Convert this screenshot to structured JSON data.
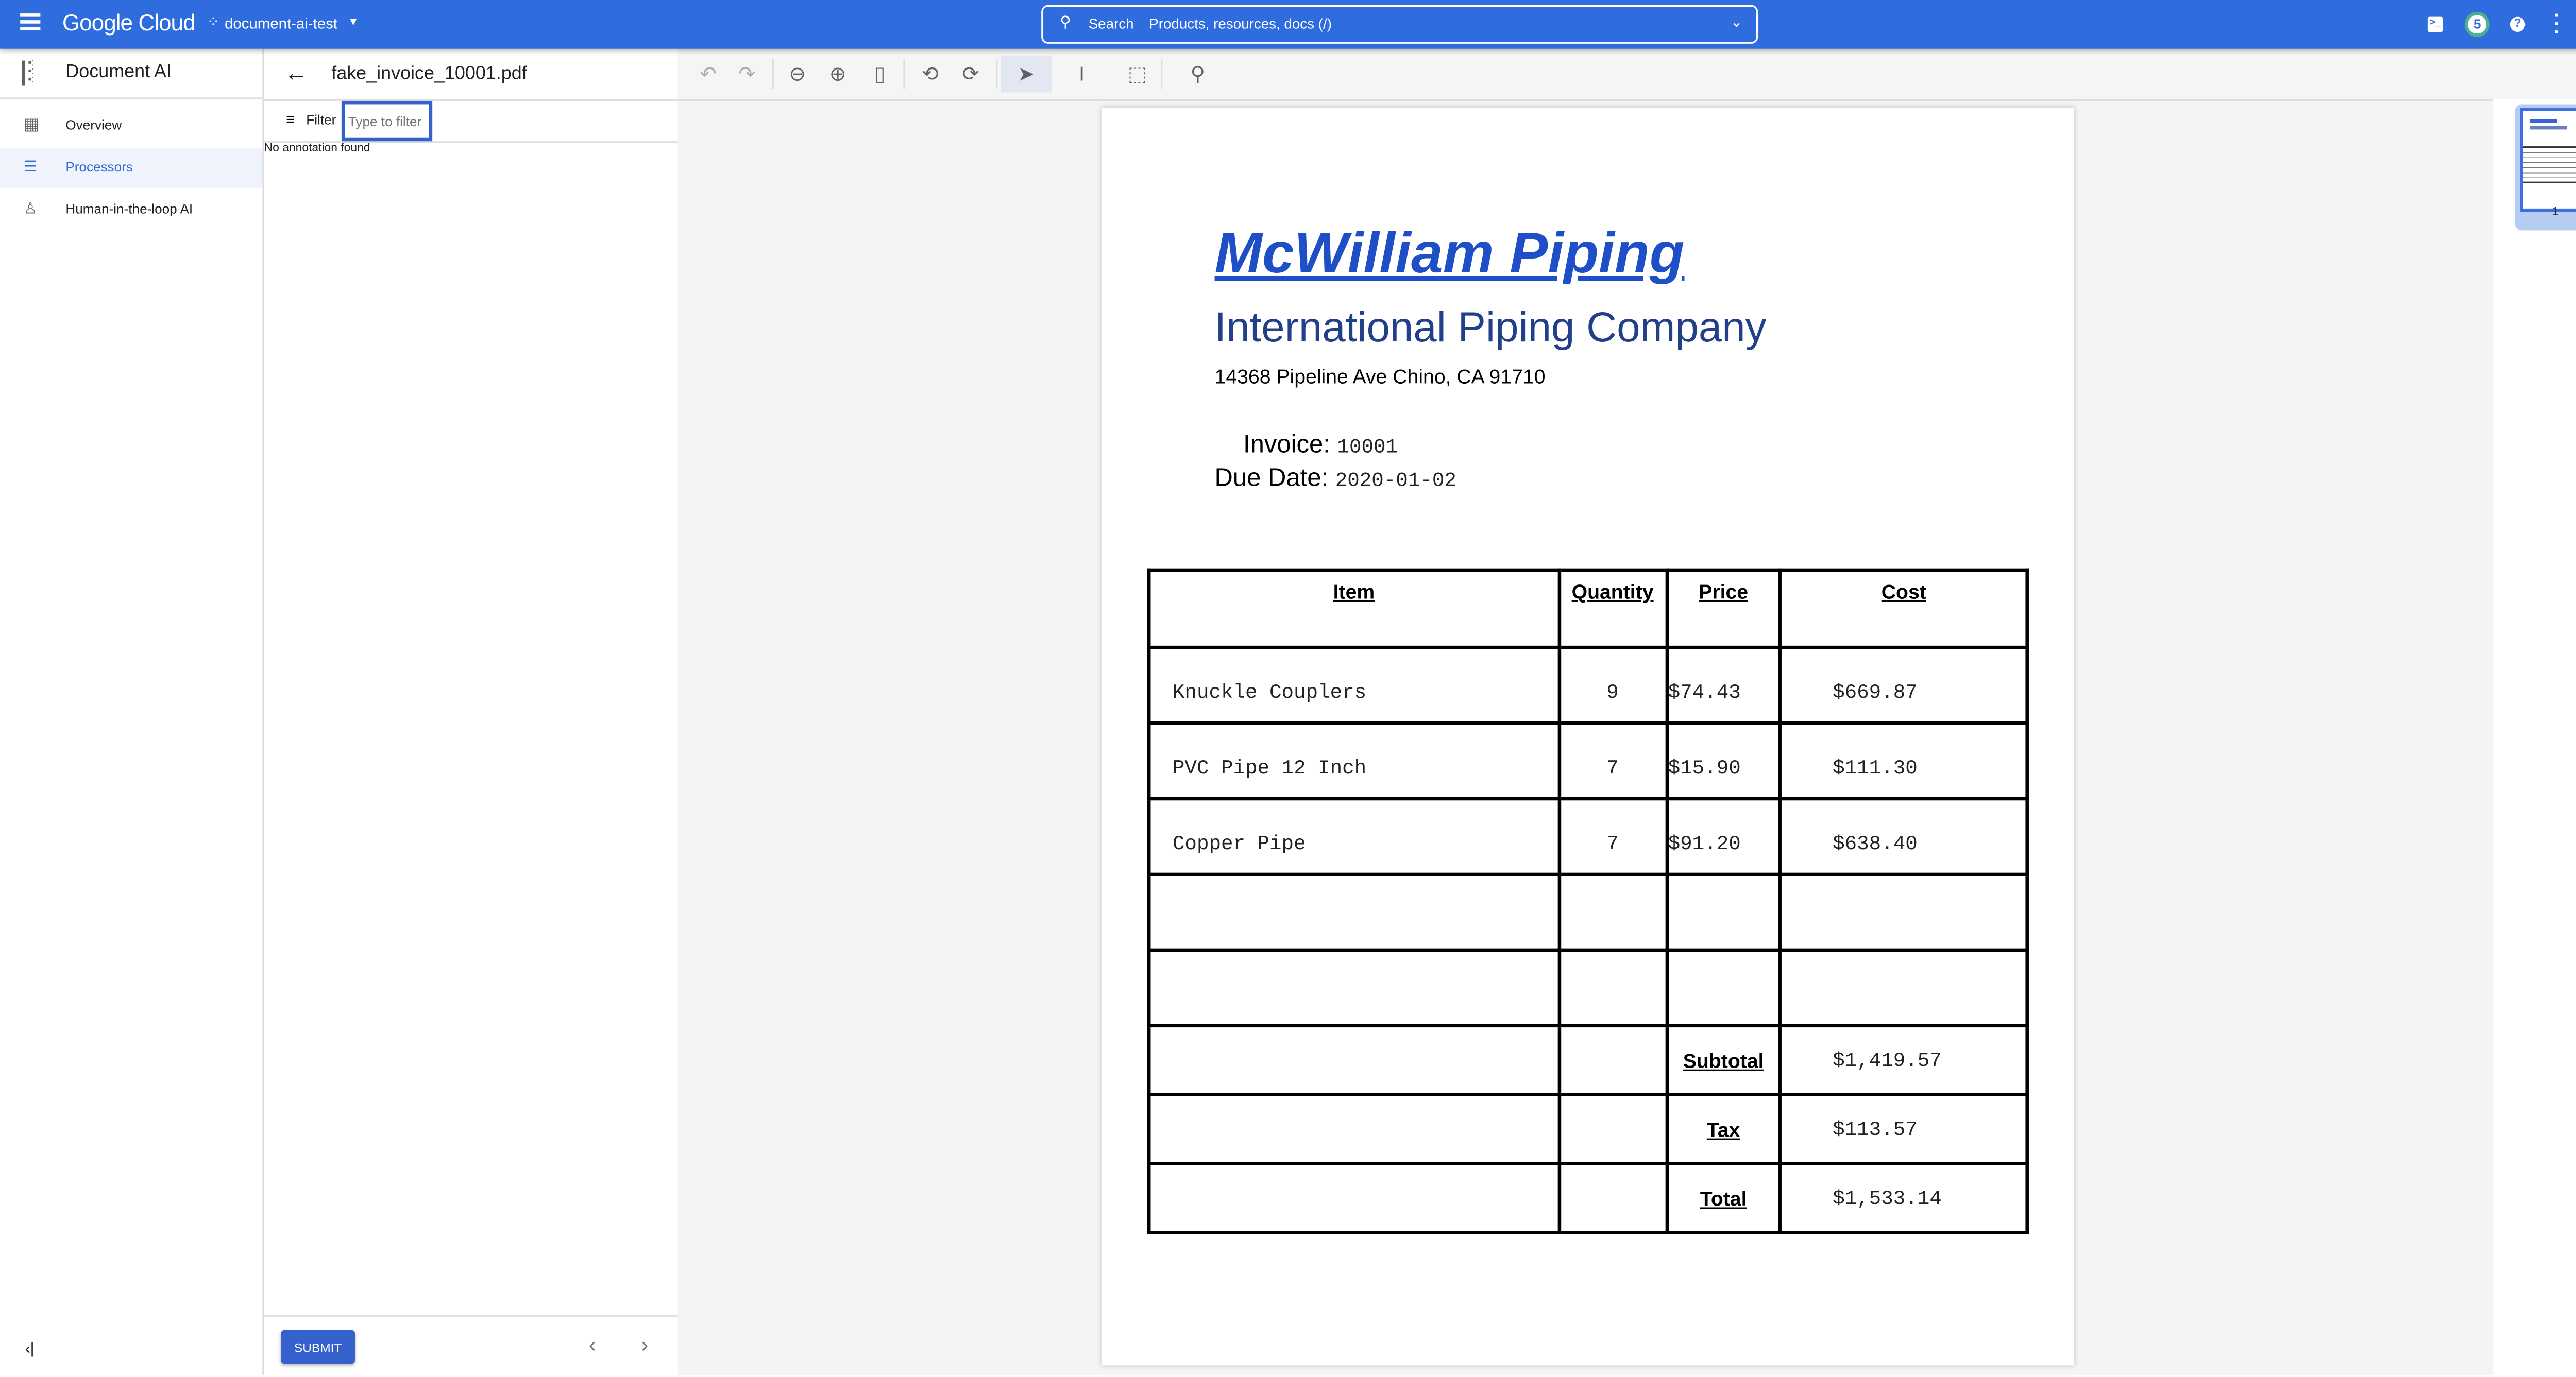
{
  "colors": {
    "brand": "#2f6ddf",
    "accent": "#3561cc",
    "company_title": "#1f4fc7",
    "company_subtitle": "#22408a",
    "badge_ring": "#4caf8f"
  },
  "topbar": {
    "menu_icon": "hamburger-icon",
    "logo": "Google Cloud",
    "project": "document-ai-test",
    "search_label": "Search",
    "search_placeholder": "Products, resources, docs (/)",
    "notifications_count": "5"
  },
  "nav": {
    "title": "Document AI",
    "items": [
      {
        "label": "Overview",
        "icon": "dashboard-icon"
      },
      {
        "label": "Processors",
        "icon": "processor-icon",
        "active": true
      },
      {
        "label": "Human-in-the-loop AI",
        "icon": "person-check-icon"
      }
    ]
  },
  "panel": {
    "filename": "fake_invoice_10001.pdf",
    "filter_label": "Filter",
    "filter_placeholder": "Type to filter",
    "empty_text": "No annotation found",
    "submit_label": "SUBMIT"
  },
  "thumbnail": {
    "page_number": "1"
  },
  "invoice": {
    "company": "McWilliam Piping",
    "subtitle": "International Piping Company",
    "address": "14368 Pipeline Ave Chino, CA 91710",
    "invoice_label": "Invoice:",
    "invoice_number": "10001",
    "due_label": "Due Date:",
    "due_date": "2020-01-02",
    "headers": [
      "Item",
      "Quantity",
      "Price",
      "Cost"
    ],
    "rows": [
      [
        "Knuckle Couplers",
        "9",
        "$74.43",
        "$669.87"
      ],
      [
        "PVC Pipe 12 Inch",
        "7",
        "$15.90",
        "$111.30"
      ],
      [
        "Copper Pipe",
        "7",
        "$91.20",
        "$638.40"
      ],
      [
        "",
        "",
        "",
        ""
      ],
      [
        "",
        "",
        "",
        ""
      ]
    ],
    "totals": [
      [
        "Subtotal",
        "$1,419.57"
      ],
      [
        "Tax",
        "$113.57"
      ],
      [
        "Total",
        "$1,533.14"
      ]
    ]
  }
}
